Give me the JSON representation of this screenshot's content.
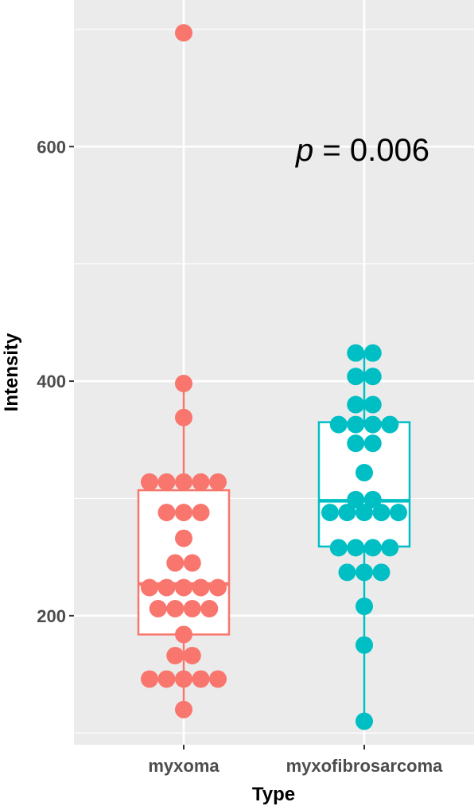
{
  "chart_data": {
    "type": "boxplot-dotplot",
    "xlabel": "Type",
    "ylabel": "Intensity",
    "categories": [
      "myxoma",
      "myxofibrosarcoma"
    ],
    "colors": {
      "myxoma": "#F8766D",
      "myxofibrosarcoma": "#00BFC4"
    },
    "ylim": [
      90,
      725
    ],
    "yticks": [
      200,
      400,
      600
    ],
    "yticks_labels": [
      "200",
      "400",
      "600"
    ],
    "grid": true,
    "annotation": {
      "italic": "p",
      "rest": " = 0.006"
    },
    "groups": [
      {
        "name": "myxoma",
        "box": {
          "lower_whisker": 120,
          "q1": 184,
          "median": 227,
          "q3": 307,
          "upper_whisker": 398
        },
        "outliers": [
          697
        ],
        "points": [
          {
            "value": 697,
            "count": 1
          },
          {
            "value": 398,
            "count": 1
          },
          {
            "value": 369,
            "count": 1
          },
          {
            "value": 314,
            "count": 5
          },
          {
            "value": 288,
            "count": 3
          },
          {
            "value": 266,
            "count": 1
          },
          {
            "value": 245,
            "count": 2
          },
          {
            "value": 224,
            "count": 5
          },
          {
            "value": 206,
            "count": 4
          },
          {
            "value": 184,
            "count": 1
          },
          {
            "value": 166,
            "count": 2
          },
          {
            "value": 146,
            "count": 5
          },
          {
            "value": 120,
            "count": 1
          }
        ]
      },
      {
        "name": "myxofibrosarcoma",
        "box": {
          "lower_whisker": 110,
          "q1": 259,
          "median": 298,
          "q3": 365,
          "upper_whisker": 424
        },
        "outliers": [],
        "points": [
          {
            "value": 424,
            "count": 2
          },
          {
            "value": 404,
            "count": 2
          },
          {
            "value": 380,
            "count": 2
          },
          {
            "value": 363,
            "count": 4
          },
          {
            "value": 347,
            "count": 2
          },
          {
            "value": 322,
            "count": 1
          },
          {
            "value": 299,
            "count": 2
          },
          {
            "value": 288,
            "count": 5
          },
          {
            "value": 258,
            "count": 4
          },
          {
            "value": 237,
            "count": 3
          },
          {
            "value": 208,
            "count": 1
          },
          {
            "value": 175,
            "count": 1
          },
          {
            "value": 110,
            "count": 1
          }
        ]
      }
    ]
  }
}
